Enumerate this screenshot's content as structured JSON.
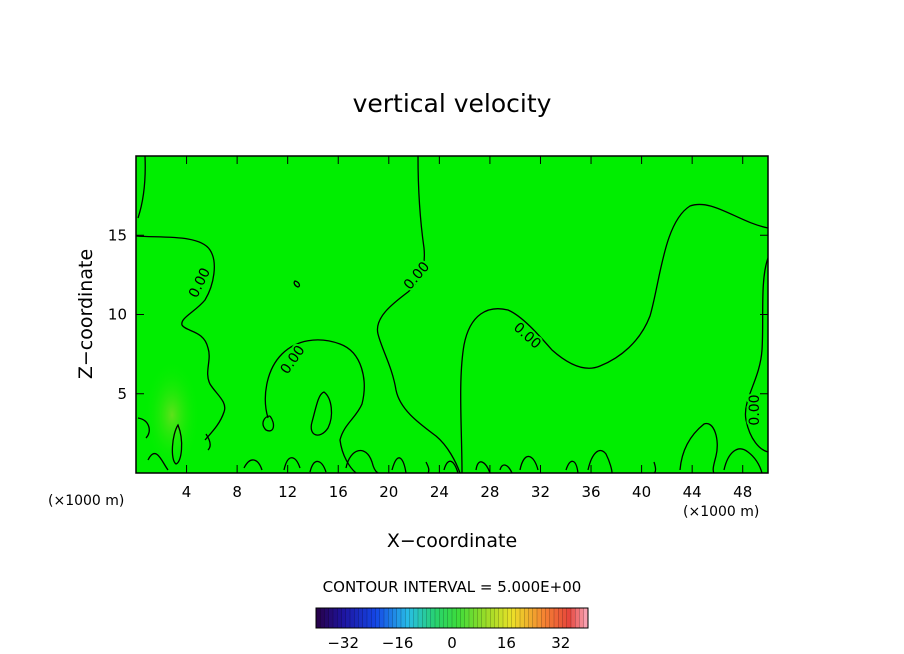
{
  "chart_data": {
    "type": "heatmap",
    "title": "vertical velocity",
    "xlabel": "X−coordinate",
    "ylabel": "Z−coordinate",
    "x_unit_left": "(×1000 m)",
    "x_unit_right": "(×1000 m)",
    "xlim": [
      0,
      50
    ],
    "ylim": [
      0,
      20
    ],
    "x_ticks": [
      4,
      8,
      12,
      16,
      20,
      24,
      28,
      32,
      36,
      40,
      44,
      48
    ],
    "y_ticks": [
      5,
      10,
      15
    ],
    "field_color": "#00ee00",
    "contour_labels": [
      "0.00",
      "0.00",
      "0.00",
      "0.00",
      "0.00"
    ],
    "contour_interval_text": "CONTOUR INTERVAL = 5.000E+00",
    "colorbar": {
      "range": [
        -40,
        40
      ],
      "ticks": [
        -32,
        -16,
        0,
        16,
        32
      ],
      "tick_labels": [
        "−32",
        "−16",
        "0",
        "16",
        "32"
      ]
    }
  }
}
